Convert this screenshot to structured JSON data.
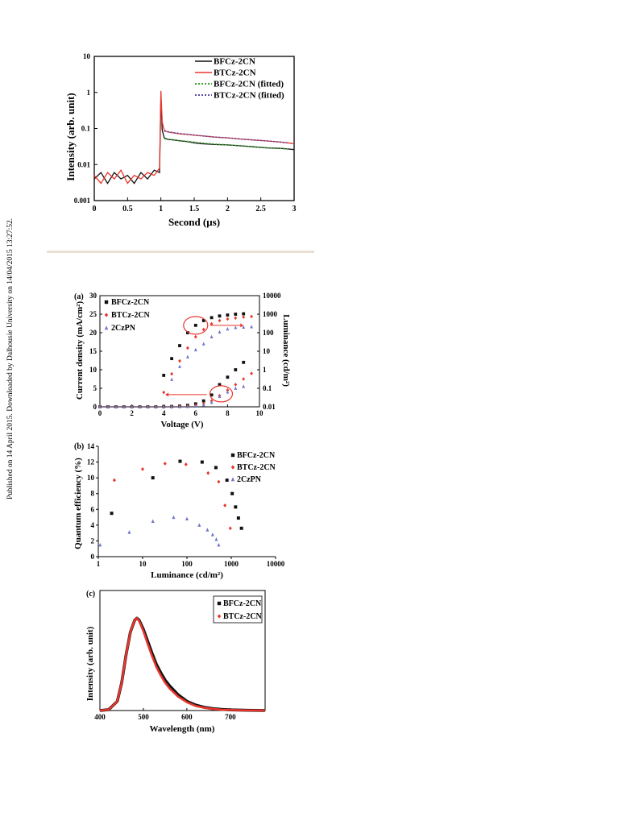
{
  "page": {
    "sidebar_text": "Published on 14 April 2015. Downloaded by Dalhousie University on 14/04/2015 13:27:52.",
    "colors": {
      "black": "#111111",
      "red": "#e8362d",
      "blue": "#6f77c8",
      "green": "#33a02c",
      "purple": "#5b4ba3",
      "divider": "#e9e2d4",
      "annotation": "#e8362d"
    }
  },
  "chart_data": [
    {
      "type": "line",
      "title": "",
      "xlabel": "Second (μs)",
      "ylabel": "Intensity (arb. unit)",
      "xlim": [
        0,
        3
      ],
      "ylim": [
        0.001,
        10
      ],
      "yscale": "log",
      "xticks": [
        "0",
        "0.5",
        "1",
        "1.5",
        "2",
        "2.5",
        "3"
      ],
      "yticks": [
        "0.001",
        "0.01",
        "0.1",
        "1",
        "10"
      ],
      "legend_position": "top-right",
      "series": [
        {
          "name": "BFCz-2CN",
          "color": "#111111",
          "style": "solid",
          "x": [
            0,
            0.1,
            0.2,
            0.3,
            0.4,
            0.5,
            0.6,
            0.7,
            0.8,
            0.9,
            0.98,
            1.0,
            1.02,
            1.05,
            1.1,
            1.2,
            1.3,
            1.4,
            1.5,
            1.6,
            1.8,
            2.0,
            2.2,
            2.4,
            2.6,
            2.8,
            2.9,
            3.0
          ],
          "y": [
            0.004,
            0.006,
            0.003,
            0.006,
            0.004,
            0.005,
            0.003,
            0.006,
            0.004,
            0.007,
            0.006,
            0.7,
            0.09,
            0.055,
            0.05,
            0.048,
            0.045,
            0.043,
            0.04,
            0.038,
            0.036,
            0.035,
            0.033,
            0.031,
            0.029,
            0.028,
            0.027,
            0.026
          ]
        },
        {
          "name": "BTCz-2CN",
          "color": "#e8362d",
          "style": "solid",
          "x": [
            0,
            0.1,
            0.2,
            0.3,
            0.4,
            0.5,
            0.6,
            0.7,
            0.8,
            0.9,
            0.98,
            1.0,
            1.02,
            1.05,
            1.1,
            1.2,
            1.3,
            1.4,
            1.5,
            1.6,
            1.8,
            2.0,
            2.2,
            2.4,
            2.6,
            2.8,
            2.9,
            3.0
          ],
          "y": [
            0.005,
            0.003,
            0.006,
            0.004,
            0.007,
            0.003,
            0.005,
            0.004,
            0.006,
            0.005,
            0.008,
            1.1,
            0.15,
            0.09,
            0.08,
            0.075,
            0.07,
            0.068,
            0.065,
            0.063,
            0.058,
            0.055,
            0.051,
            0.048,
            0.045,
            0.042,
            0.04,
            0.038
          ]
        },
        {
          "name": "BFCz-2CN (fitted)",
          "color": "#33a02c",
          "style": "dotted",
          "x": [
            1.05,
            1.2,
            1.4,
            1.6,
            1.8,
            2.0,
            2.2,
            2.4,
            2.6,
            2.8,
            2.9
          ],
          "y": [
            0.052,
            0.048,
            0.044,
            0.04,
            0.037,
            0.035,
            0.033,
            0.031,
            0.029,
            0.028,
            0.027
          ]
        },
        {
          "name": "BTCz-2CN (fitted)",
          "color": "#5b4ba3",
          "style": "dotted",
          "x": [
            1.05,
            1.2,
            1.4,
            1.6,
            1.8,
            2.0,
            2.2,
            2.4,
            2.6,
            2.8,
            2.9
          ],
          "y": [
            0.085,
            0.076,
            0.069,
            0.063,
            0.058,
            0.055,
            0.051,
            0.048,
            0.045,
            0.042,
            0.04
          ]
        }
      ]
    },
    {
      "type": "scatter",
      "panel_label": "(a)",
      "xlabel": "Voltage (V)",
      "ylabel": "Current density (mA/cm²)",
      "y2label": "Luminance (cd/m²)",
      "xlim": [
        0,
        10
      ],
      "ylim": [
        0,
        30
      ],
      "y2lim": [
        0.01,
        10000
      ],
      "y2scale": "log",
      "xticks": [
        "0",
        "2",
        "4",
        "6",
        "8",
        "10"
      ],
      "yticks": [
        "0",
        "5",
        "10",
        "15",
        "20",
        "25",
        "30"
      ],
      "y2ticks": [
        "0.01",
        "0.1",
        "1",
        "10",
        "100",
        "1000",
        "10000"
      ],
      "legend_position": "top-left",
      "series": [
        {
          "name": "BFCz-2CN",
          "color": "#111111",
          "marker": "square",
          "axis": "left",
          "x": [
            0,
            0.5,
            1,
            1.5,
            2,
            2.5,
            3,
            3.5,
            4,
            4.5,
            5,
            5.5,
            6,
            6.5,
            7,
            7.5,
            8,
            8.5,
            9
          ],
          "y": [
            0,
            0,
            0,
            0,
            0,
            0,
            0,
            0,
            0.05,
            0.1,
            0.2,
            0.4,
            0.8,
            1.6,
            3.2,
            6.0,
            8.0,
            10.0,
            12.0
          ]
        },
        {
          "name": "BTCz-2CN",
          "color": "#e8362d",
          "marker": "diamond",
          "axis": "left",
          "x": [
            0,
            0.5,
            1,
            1.5,
            2,
            2.5,
            3,
            3.5,
            4,
            4.5,
            5,
            5.5,
            6,
            6.5,
            7,
            7.5,
            8,
            8.5,
            9,
            9.5
          ],
          "y": [
            0,
            0,
            0,
            0,
            0,
            0,
            0,
            0,
            0,
            0.05,
            0.1,
            0.2,
            0.4,
            0.8,
            1.6,
            3.0,
            4.5,
            6.0,
            7.5,
            9.0
          ]
        },
        {
          "name": "2CzPN",
          "color": "#6f77c8",
          "marker": "triangle",
          "axis": "left",
          "x": [
            0,
            0.5,
            1,
            1.5,
            2,
            2.5,
            3,
            3.5,
            4,
            4.5,
            5,
            5.5,
            6,
            6.5,
            7,
            7.5,
            8,
            8.5,
            9
          ],
          "y": [
            0,
            0,
            0,
            0,
            0,
            0,
            0,
            0,
            0,
            0,
            0.05,
            0.1,
            0.2,
            0.5,
            1.2,
            2.8,
            4.0,
            5.0,
            5.5
          ]
        },
        {
          "name": "BFCz-2CN",
          "color": "#111111",
          "marker": "square",
          "axis": "right",
          "in_legend": false,
          "x": [
            4,
            4.5,
            5,
            5.5,
            6,
            6.5,
            7,
            7.5,
            8,
            8.5,
            9
          ],
          "y2": [
            0.5,
            4,
            20,
            100,
            250,
            450,
            650,
            800,
            900,
            1000,
            1050
          ]
        },
        {
          "name": "BTCz-2CN",
          "color": "#e8362d",
          "marker": "diamond",
          "axis": "right",
          "in_legend": false,
          "x": [
            4,
            4.5,
            5,
            5.5,
            6,
            6.5,
            7,
            7.5,
            8,
            8.5,
            9,
            9.5
          ],
          "y2": [
            0.06,
            0.6,
            3,
            15,
            60,
            150,
            300,
            450,
            550,
            620,
            700,
            750
          ]
        },
        {
          "name": "2CzPN",
          "color": "#6f77c8",
          "marker": "triangle",
          "axis": "right",
          "in_legend": false,
          "x": [
            4.5,
            5,
            5.5,
            6,
            6.5,
            7,
            7.5,
            8,
            8.5,
            9,
            9.5
          ],
          "y2": [
            0.3,
            1.5,
            5,
            12,
            25,
            60,
            110,
            160,
            190,
            200,
            210
          ]
        }
      ]
    },
    {
      "type": "scatter",
      "panel_label": "(b)",
      "xlabel": "Luminance (cd/m²)",
      "ylabel": "Quantum efficiency (%)",
      "xlim": [
        1,
        10000
      ],
      "xscale": "log",
      "ylim": [
        0,
        14
      ],
      "xticks": [
        "1",
        "10",
        "100",
        "1000",
        "10000"
      ],
      "yticks": [
        "0",
        "2",
        "4",
        "6",
        "8",
        "10",
        "12",
        "14"
      ],
      "legend_position": "top-right",
      "series": [
        {
          "name": "BFCz-2CN",
          "color": "#111111",
          "marker": "square",
          "x": [
            2,
            17,
            70,
            220,
            450,
            800,
            1050,
            1250,
            1450,
            1700
          ],
          "y": [
            5.5,
            10.0,
            12.1,
            12.0,
            11.3,
            9.7,
            8.0,
            6.3,
            4.9,
            3.6
          ]
        },
        {
          "name": "BTCz-2CN",
          "color": "#e8362d",
          "marker": "diamond",
          "x": [
            2.3,
            10,
            32,
            95,
            300,
            520,
            720,
            950
          ],
          "y": [
            9.7,
            11.1,
            11.8,
            11.7,
            10.6,
            9.5,
            6.5,
            3.6
          ]
        },
        {
          "name": "2CzPN",
          "color": "#6f77c8",
          "marker": "triangle",
          "x": [
            1.1,
            5,
            17,
            50,
            100,
            190,
            290,
            380,
            460,
            520
          ],
          "y": [
            1.5,
            3.1,
            4.5,
            5.0,
            4.8,
            4.0,
            3.4,
            2.8,
            2.2,
            1.5
          ]
        }
      ]
    },
    {
      "type": "line",
      "panel_label": "(c)",
      "xlabel": "Wavelength (nm)",
      "ylabel": "Intensity (arb. unit)",
      "xlim": [
        400,
        780
      ],
      "ylim": [
        0,
        1.3
      ],
      "xticks": [
        "400",
        "500",
        "600",
        "700"
      ],
      "legend_position": "top-right",
      "series": [
        {
          "name": "BFCz-2CN",
          "color": "#111111",
          "marker": "square",
          "x": [
            400,
            420,
            440,
            450,
            460,
            470,
            480,
            485,
            490,
            500,
            510,
            520,
            530,
            540,
            550,
            560,
            580,
            600,
            620,
            640,
            660,
            680,
            700,
            740,
            780
          ],
          "y": [
            0.0,
            0.01,
            0.1,
            0.3,
            0.6,
            0.85,
            0.98,
            1.0,
            0.98,
            0.88,
            0.75,
            0.62,
            0.5,
            0.41,
            0.33,
            0.27,
            0.17,
            0.1,
            0.06,
            0.035,
            0.02,
            0.012,
            0.007,
            0.003,
            0.001
          ]
        },
        {
          "name": "BTCz-2CN",
          "color": "#e8362d",
          "marker": "diamond",
          "x": [
            400,
            420,
            440,
            450,
            460,
            470,
            480,
            485,
            490,
            500,
            510,
            520,
            530,
            540,
            550,
            560,
            580,
            600,
            620,
            640,
            660,
            680,
            700,
            740,
            780
          ],
          "y": [
            0.0,
            0.01,
            0.1,
            0.3,
            0.6,
            0.85,
            0.98,
            1.0,
            0.97,
            0.86,
            0.72,
            0.59,
            0.47,
            0.38,
            0.3,
            0.24,
            0.15,
            0.09,
            0.05,
            0.03,
            0.017,
            0.01,
            0.006,
            0.002,
            0.001
          ]
        }
      ]
    }
  ]
}
